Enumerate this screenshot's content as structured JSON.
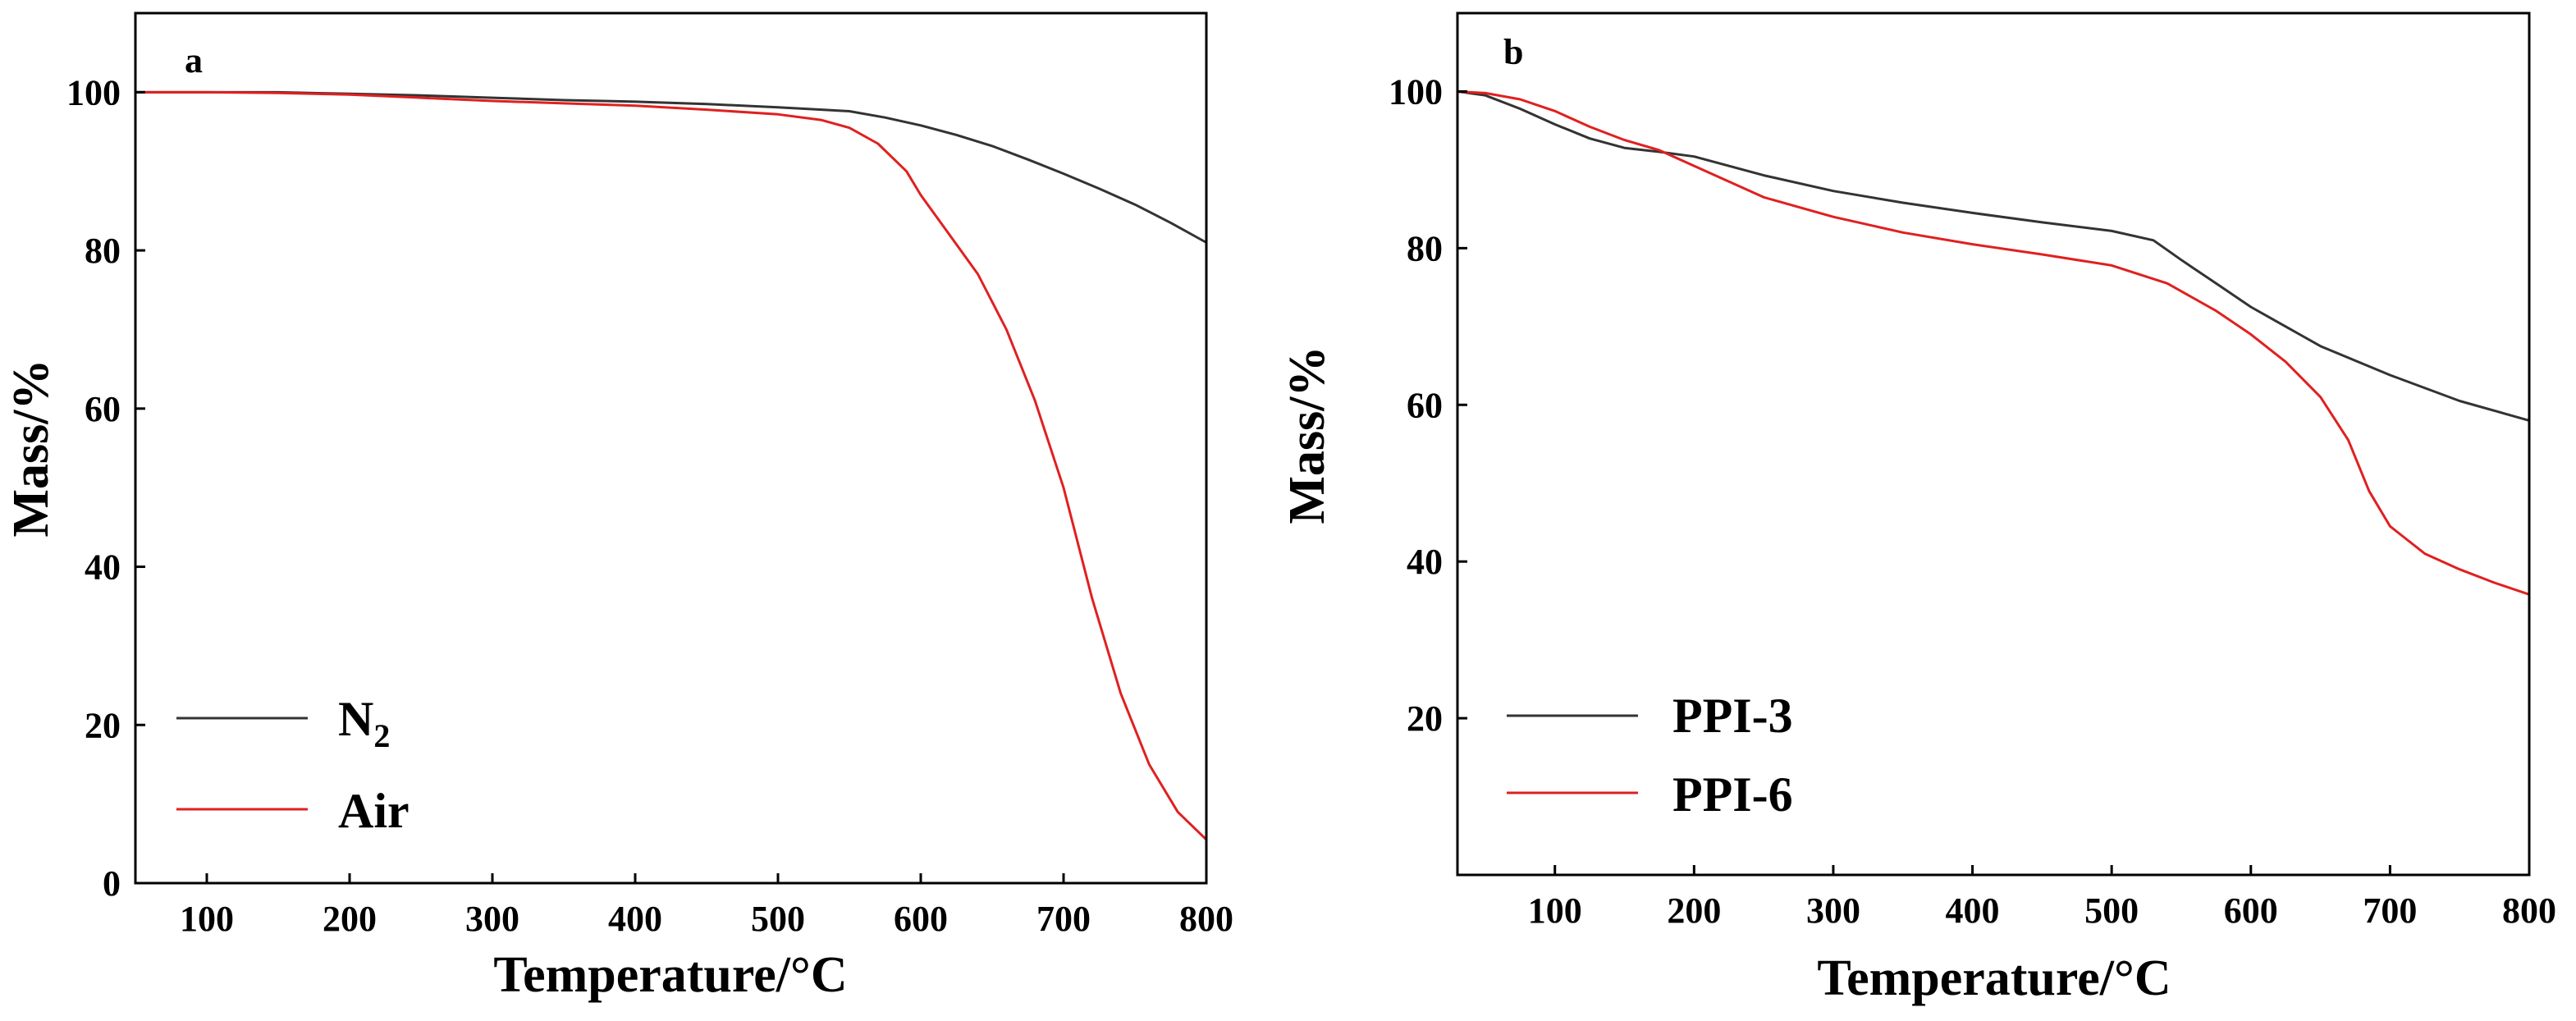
{
  "chart_data": [
    {
      "type": "line",
      "panel_label": "a",
      "xlabel": "Temperature/°C",
      "ylabel": "Mass/%",
      "xlim": [
        50,
        800
      ],
      "ylim": [
        0,
        110
      ],
      "xticks": [
        100,
        200,
        300,
        400,
        500,
        600,
        700,
        800
      ],
      "yticks": [
        0,
        20,
        40,
        60,
        80,
        100
      ],
      "legend_position": "bottom-left",
      "series": [
        {
          "name": "N",
          "subscript": "2",
          "color": "#333333",
          "points": [
            [
              50,
              100
            ],
            [
              100,
              100
            ],
            [
              150,
              100
            ],
            [
              200,
              99.8
            ],
            [
              250,
              99.6
            ],
            [
              300,
              99.3
            ],
            [
              350,
              99
            ],
            [
              400,
              98.8
            ],
            [
              450,
              98.5
            ],
            [
              500,
              98.1
            ],
            [
              550,
              97.6
            ],
            [
              575,
              96.8
            ],
            [
              600,
              95.8
            ],
            [
              625,
              94.6
            ],
            [
              650,
              93.2
            ],
            [
              675,
              91.5
            ],
            [
              700,
              89.7
            ],
            [
              725,
              87.8
            ],
            [
              750,
              85.8
            ],
            [
              775,
              83.5
            ],
            [
              800,
              81
            ]
          ]
        },
        {
          "name": "Air",
          "color": "#e02020",
          "points": [
            [
              50,
              100
            ],
            [
              100,
              100
            ],
            [
              150,
              99.9
            ],
            [
              200,
              99.7
            ],
            [
              250,
              99.3
            ],
            [
              300,
              98.9
            ],
            [
              350,
              98.6
            ],
            [
              400,
              98.3
            ],
            [
              450,
              97.8
            ],
            [
              500,
              97.2
            ],
            [
              530,
              96.5
            ],
            [
              550,
              95.5
            ],
            [
              570,
              93.5
            ],
            [
              590,
              90
            ],
            [
              600,
              87
            ],
            [
              620,
              82
            ],
            [
              640,
              77
            ],
            [
              660,
              70
            ],
            [
              680,
              61
            ],
            [
              700,
              50
            ],
            [
              720,
              36
            ],
            [
              740,
              24
            ],
            [
              760,
              15
            ],
            [
              780,
              9
            ],
            [
              800,
              5.5
            ]
          ]
        }
      ]
    },
    {
      "type": "line",
      "panel_label": "b",
      "xlabel": "Temperature/°C",
      "ylabel": "Mass/%",
      "xlim": [
        30,
        800
      ],
      "ylim": [
        0,
        110
      ],
      "xticks": [
        100,
        200,
        300,
        400,
        500,
        600,
        700,
        800
      ],
      "yticks": [
        20,
        40,
        60,
        80,
        100
      ],
      "legend_position": "bottom-left",
      "series": [
        {
          "name": "PPI-3",
          "color": "#333333",
          "points": [
            [
              30,
              100
            ],
            [
              50,
              99.5
            ],
            [
              75,
              97.8
            ],
            [
              100,
              95.8
            ],
            [
              125,
              94
            ],
            [
              150,
              92.8
            ],
            [
              175,
              92.3
            ],
            [
              200,
              91.7
            ],
            [
              250,
              89.3
            ],
            [
              300,
              87.3
            ],
            [
              350,
              85.8
            ],
            [
              400,
              84.5
            ],
            [
              450,
              83.3
            ],
            [
              500,
              82.2
            ],
            [
              530,
              81
            ],
            [
              550,
              78.5
            ],
            [
              575,
              75.5
            ],
            [
              600,
              72.5
            ],
            [
              650,
              67.5
            ],
            [
              700,
              63.8
            ],
            [
              750,
              60.5
            ],
            [
              800,
              58
            ]
          ]
        },
        {
          "name": "PPI-6",
          "color": "#e02020",
          "points": [
            [
              30,
              100
            ],
            [
              50,
              99.8
            ],
            [
              75,
              99
            ],
            [
              100,
              97.5
            ],
            [
              125,
              95.5
            ],
            [
              150,
              93.8
            ],
            [
              175,
              92.5
            ],
            [
              200,
              90.5
            ],
            [
              250,
              86.5
            ],
            [
              300,
              84
            ],
            [
              350,
              82
            ],
            [
              400,
              80.5
            ],
            [
              450,
              79.2
            ],
            [
              500,
              77.8
            ],
            [
              540,
              75.5
            ],
            [
              575,
              72
            ],
            [
              600,
              69
            ],
            [
              625,
              65.5
            ],
            [
              650,
              61
            ],
            [
              670,
              55.5
            ],
            [
              685,
              49
            ],
            [
              700,
              44.5
            ],
            [
              725,
              41
            ],
            [
              750,
              39
            ],
            [
              775,
              37.3
            ],
            [
              800,
              35.8
            ]
          ]
        }
      ]
    }
  ]
}
